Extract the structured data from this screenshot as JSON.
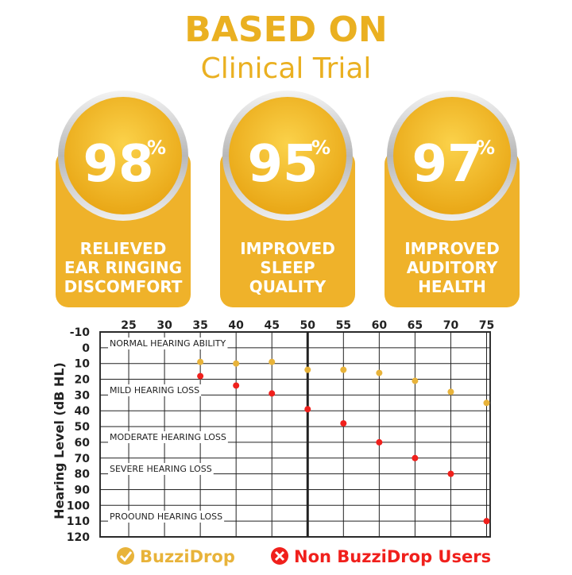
{
  "header": {
    "title": "BASED ON",
    "subtitle": "Clinical Trial"
  },
  "stats": [
    {
      "value": 98,
      "unit": "%",
      "lines": [
        "RELIEVED",
        "EAR RINGING",
        "DISCOMFORT"
      ]
    },
    {
      "value": 95,
      "unit": "%",
      "lines": [
        "IMPROVED",
        "SLEEP",
        "QUALITY"
      ]
    },
    {
      "value": 97,
      "unit": "%",
      "lines": [
        "IMPROVED",
        "AUDITORY",
        "HEALTH"
      ]
    }
  ],
  "chart_data": {
    "type": "line",
    "y_label": "Hearing Level (dB HL)",
    "x": [
      35,
      40,
      45,
      50,
      55,
      60,
      65,
      70,
      75
    ],
    "series": [
      {
        "name": "BuzziDrop",
        "color": "#e8b33a",
        "values": [
          9,
          10,
          9,
          14,
          14,
          16,
          21,
          28,
          35
        ]
      },
      {
        "name": "Non BuzziDrop Users",
        "color": "#f0201c",
        "values": [
          18,
          24,
          29,
          39,
          48,
          60,
          70,
          80,
          110
        ]
      }
    ],
    "xlim": [
      21,
      75.5
    ],
    "xticks": [
      25,
      30,
      35,
      40,
      45,
      50,
      55,
      60,
      65,
      70,
      75
    ],
    "ylim": [
      -10,
      120
    ],
    "yticks": [
      -10,
      0,
      10,
      20,
      30,
      40,
      50,
      60,
      70,
      80,
      90,
      100,
      110,
      120
    ],
    "y_reversed": true,
    "grid": true,
    "annotations": [
      "NORMAL HEARING ABILITY",
      "MILD HEARING LOSS",
      "MODERATE HEARING LOSS",
      "SEVERE HEARING LOSS",
      "PROOUND HEARING LOSS"
    ]
  }
}
